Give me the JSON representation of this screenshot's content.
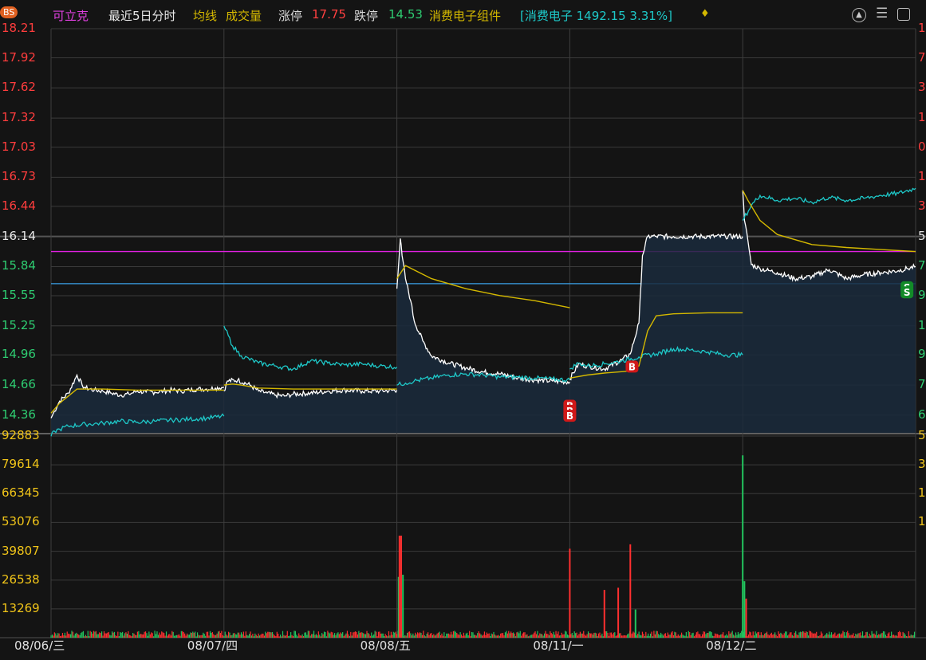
{
  "header": {
    "badge": "BS",
    "stock_name": "可立克",
    "period": "最近5日分时",
    "avg_line_label": "均线",
    "volume_label": "成交量",
    "limit_up_label": "涨停",
    "limit_up_value": "17.75",
    "limit_down_label": "跌停",
    "limit_down_value": "14.53",
    "sector_label": "消费电子组件",
    "index_text": "[消费电子 1492.15 3.31%]"
  },
  "colors": {
    "price_line": "#ffffff",
    "avg_line": "#d4b800",
    "index_line": "#1ec8c8",
    "up": "#ff3030",
    "down": "#22c55e",
    "grid": "#3a3a3a",
    "magenta_ref": "#e020e0",
    "blue_ref": "#3aa0e8"
  },
  "chart_data": {
    "type": "line",
    "title": "",
    "x_labels": [
      "08/06/三",
      "08/07/四",
      "08/08/五",
      "08/11/一",
      "08/12/二"
    ],
    "price_axis": [
      "18.21",
      "17.92",
      "17.62",
      "17.32",
      "17.03",
      "16.73",
      "16.44",
      "16.14",
      "15.84",
      "15.55",
      "15.25",
      "14.96",
      "14.66",
      "14.36"
    ],
    "price_axis_red_above": 16.14,
    "volume_axis": [
      "92883",
      "79614",
      "66345",
      "53076",
      "39807",
      "26538",
      "13269"
    ],
    "reference_lines": {
      "magenta": 15.99,
      "blue": 15.67
    },
    "price_series": {
      "name": "price",
      "x": [
        0,
        0.02,
        0.05,
        0.1,
        0.15,
        0.18,
        0.2,
        0.25,
        0.3,
        0.35,
        0.4,
        0.45,
        0.5,
        0.55,
        0.6,
        0.65,
        0.7,
        0.75,
        0.8,
        0.85,
        0.9,
        0.95,
        1.0,
        1.0,
        1.02,
        1.08,
        1.15,
        1.2,
        1.25,
        1.3,
        1.35,
        1.4,
        1.5,
        1.6,
        1.7,
        1.8,
        1.9,
        2.0,
        2.0,
        2.02,
        2.03,
        2.05,
        2.08,
        2.1,
        2.15,
        2.2,
        2.3,
        2.4,
        2.5,
        2.6,
        2.7,
        2.8,
        2.9,
        3.0,
        3.0,
        3.05,
        3.1,
        3.2,
        3.3,
        3.35,
        3.4,
        3.42,
        3.45,
        3.5,
        3.6,
        3.7,
        3.8,
        3.9,
        4.0,
        4.0,
        4.01,
        4.03,
        4.05,
        4.1,
        4.15,
        4.2,
        4.3,
        4.4,
        4.5,
        4.6,
        4.7,
        4.8,
        4.9,
        4.95,
        5.0
      ],
      "y": [
        14.33,
        14.4,
        14.5,
        14.58,
        14.76,
        14.66,
        14.63,
        14.61,
        14.6,
        14.58,
        14.56,
        14.57,
        14.6,
        14.59,
        14.59,
        14.6,
        14.61,
        14.6,
        14.61,
        14.62,
        14.62,
        14.63,
        14.64,
        14.6,
        14.7,
        14.71,
        14.66,
        14.6,
        14.58,
        14.56,
        14.55,
        14.57,
        14.58,
        14.6,
        14.61,
        14.6,
        14.6,
        14.61,
        15.62,
        16.12,
        15.95,
        15.72,
        15.5,
        15.3,
        15.1,
        14.95,
        14.88,
        14.83,
        14.79,
        14.77,
        14.73,
        14.71,
        14.7,
        14.69,
        14.72,
        14.87,
        14.85,
        14.82,
        14.91,
        14.97,
        15.28,
        15.95,
        16.14,
        16.14,
        16.14,
        16.14,
        16.14,
        16.14,
        16.14,
        16.6,
        16.3,
        16.1,
        15.86,
        15.82,
        15.8,
        15.78,
        15.72,
        15.74,
        15.81,
        15.72,
        15.76,
        15.78,
        15.8,
        15.82,
        15.84
      ]
    },
    "avg_series": {
      "name": "均线",
      "x": [
        0,
        0.05,
        0.1,
        0.15,
        0.2,
        0.3,
        0.5,
        0.7,
        0.9,
        1.0,
        1.0,
        1.05,
        1.1,
        1.2,
        1.4,
        1.6,
        1.8,
        2.0,
        2.0,
        2.05,
        2.2,
        2.4,
        2.6,
        2.8,
        3.0,
        3.0,
        3.1,
        3.2,
        3.35,
        3.4,
        3.45,
        3.5,
        3.6,
        3.8,
        4.0,
        4.0,
        4.03,
        4.1,
        4.2,
        4.4,
        4.6,
        4.8,
        5.0
      ],
      "y": [
        14.38,
        14.48,
        14.55,
        14.62,
        14.62,
        14.62,
        14.61,
        14.61,
        14.61,
        14.61,
        14.66,
        14.67,
        14.66,
        14.63,
        14.62,
        14.62,
        14.62,
        14.62,
        15.72,
        15.85,
        15.72,
        15.62,
        15.55,
        15.5,
        15.43,
        14.73,
        14.76,
        14.78,
        14.8,
        14.85,
        15.2,
        15.35,
        15.37,
        15.38,
        15.38,
        16.6,
        16.5,
        16.3,
        16.16,
        16.06,
        16.03,
        16.01,
        15.99
      ]
    },
    "index_series": {
      "name": "消费电子",
      "x": [
        0,
        0.02,
        0.05,
        0.1,
        0.2,
        0.3,
        0.4,
        0.5,
        0.6,
        0.7,
        0.8,
        0.9,
        1.0,
        1.0,
        1.05,
        1.1,
        1.2,
        1.3,
        1.4,
        1.5,
        1.6,
        1.7,
        1.8,
        1.9,
        2.0,
        2.0,
        2.05,
        2.1,
        2.2,
        2.3,
        2.4,
        2.5,
        2.6,
        2.7,
        2.8,
        2.9,
        3.0,
        3.0,
        3.05,
        3.1,
        3.2,
        3.3,
        3.4,
        3.5,
        3.6,
        3.7,
        3.8,
        3.9,
        4.0,
        4.0,
        4.05,
        4.1,
        4.2,
        4.3,
        4.4,
        4.5,
        4.6,
        4.7,
        4.8,
        4.9,
        5.0
      ],
      "y": [
        14.15,
        14.2,
        14.22,
        14.25,
        14.27,
        14.28,
        14.3,
        14.29,
        14.3,
        14.31,
        14.32,
        14.33,
        14.35,
        15.25,
        15.05,
        14.95,
        14.88,
        14.85,
        14.82,
        14.9,
        14.88,
        14.86,
        14.87,
        14.85,
        14.84,
        14.66,
        14.68,
        14.7,
        14.73,
        14.76,
        14.77,
        14.76,
        14.74,
        14.74,
        14.73,
        14.72,
        14.71,
        14.82,
        14.88,
        14.85,
        14.87,
        14.9,
        14.94,
        14.97,
        15.02,
        15.01,
        14.99,
        14.96,
        14.96,
        16.3,
        16.45,
        16.55,
        16.5,
        16.52,
        16.48,
        16.53,
        16.5,
        16.52,
        16.55,
        16.57,
        16.62
      ]
    },
    "volume_bars": {
      "spikes": [
        {
          "x": 2.01,
          "value": 28000,
          "dir": "down"
        },
        {
          "x": 2.015,
          "value": 47000,
          "dir": "up"
        },
        {
          "x": 2.025,
          "value": 47000,
          "dir": "up"
        },
        {
          "x": 2.035,
          "value": 29000,
          "dir": "down"
        },
        {
          "x": 3.0,
          "value": 41000,
          "dir": "up"
        },
        {
          "x": 3.2,
          "value": 22000,
          "dir": "up"
        },
        {
          "x": 3.28,
          "value": 23000,
          "dir": "up"
        },
        {
          "x": 3.35,
          "value": 43000,
          "dir": "up"
        },
        {
          "x": 3.38,
          "value": 13000,
          "dir": "down"
        },
        {
          "x": 4.0,
          "value": 84000,
          "dir": "down"
        },
        {
          "x": 4.01,
          "value": 26000,
          "dir": "down"
        },
        {
          "x": 4.02,
          "value": 18000,
          "dir": "up"
        }
      ]
    },
    "markers": [
      {
        "label": "B",
        "x": 3.0,
        "y": 14.45,
        "type": "buy"
      },
      {
        "label": "B",
        "x": 3.0,
        "y": 14.4,
        "type": "buy"
      },
      {
        "label": "B",
        "x": 3.0,
        "y": 14.35,
        "type": "buy"
      },
      {
        "label": "B",
        "x": 3.36,
        "y": 14.84,
        "type": "buy"
      },
      {
        "label": "S",
        "x": 4.95,
        "y": 15.63,
        "type": "sell"
      },
      {
        "label": "S",
        "x": 4.95,
        "y": 15.58,
        "type": "sell"
      }
    ]
  },
  "right_axis_visible": [
    "1",
    "7",
    "3",
    "1",
    "0",
    "1",
    "3",
    "5",
    "7",
    "9",
    "1",
    "9",
    "7",
    "6",
    "5",
    "3",
    "1",
    "1"
  ]
}
